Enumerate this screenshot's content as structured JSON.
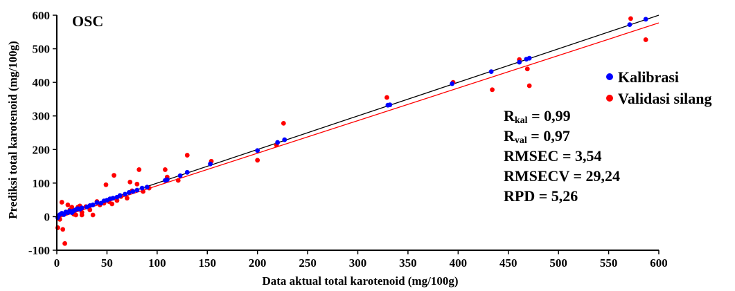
{
  "chart_data": {
    "type": "scatter",
    "panel_label": "OSC",
    "xlabel": "Data aktual total karotenoid  (mg/100g)",
    "ylabel": "Prediksi total karotenoid (mg/100g)",
    "xlim": [
      0,
      600
    ],
    "ylim": [
      -100,
      600
    ],
    "x_ticks": [
      0,
      50,
      100,
      150,
      200,
      250,
      300,
      350,
      400,
      450,
      500,
      550,
      600
    ],
    "y_ticks": [
      -100,
      0,
      100,
      200,
      300,
      400,
      500,
      600
    ],
    "grid": false,
    "legend_position": "right",
    "colors": {
      "kalibrasi": "#0000ff",
      "validasi": "#ff0000",
      "line_kal": "#000000",
      "line_val": "#ff0000"
    },
    "series": [
      {
        "name": "Kalibrasi",
        "color": "#0000ff",
        "points": [
          [
            1,
            -3
          ],
          [
            3,
            6
          ],
          [
            5,
            10
          ],
          [
            7,
            6
          ],
          [
            9,
            14
          ],
          [
            11,
            12
          ],
          [
            13,
            17
          ],
          [
            15,
            12
          ],
          [
            17,
            18
          ],
          [
            19,
            21
          ],
          [
            21,
            24
          ],
          [
            23,
            22
          ],
          [
            25,
            26
          ],
          [
            30,
            29
          ],
          [
            33,
            33
          ],
          [
            36,
            35
          ],
          [
            40,
            42
          ],
          [
            44,
            40
          ],
          [
            47,
            47
          ],
          [
            50,
            49
          ],
          [
            53,
            53
          ],
          [
            56,
            55
          ],
          [
            60,
            58
          ],
          [
            63,
            63
          ],
          [
            68,
            67
          ],
          [
            72,
            72
          ],
          [
            76,
            75
          ],
          [
            80,
            79
          ],
          [
            85,
            85
          ],
          [
            90,
            88
          ],
          [
            108,
            108
          ],
          [
            110,
            110
          ],
          [
            123,
            122
          ],
          [
            130,
            132
          ],
          [
            153,
            157
          ],
          [
            200,
            197
          ],
          [
            220,
            221
          ],
          [
            227,
            229
          ],
          [
            330,
            332
          ],
          [
            332,
            333
          ],
          [
            394,
            396
          ],
          [
            433,
            432
          ],
          [
            461,
            460
          ],
          [
            468,
            469
          ],
          [
            471,
            472
          ],
          [
            571,
            572
          ],
          [
            587,
            588
          ]
        ]
      },
      {
        "name": "Validasi silang",
        "color": "#ff0000",
        "points": [
          [
            1,
            -33
          ],
          [
            3,
            -8
          ],
          [
            5,
            43
          ],
          [
            6,
            -38
          ],
          [
            8,
            -80
          ],
          [
            9,
            10
          ],
          [
            11,
            35
          ],
          [
            13,
            20
          ],
          [
            15,
            28
          ],
          [
            17,
            7
          ],
          [
            19,
            5
          ],
          [
            21,
            28
          ],
          [
            23,
            32
          ],
          [
            25,
            13
          ],
          [
            25,
            5
          ],
          [
            29,
            30
          ],
          [
            33,
            20
          ],
          [
            36,
            5
          ],
          [
            40,
            45
          ],
          [
            43,
            35
          ],
          [
            47,
            40
          ],
          [
            49,
            95
          ],
          [
            52,
            45
          ],
          [
            55,
            38
          ],
          [
            57,
            123
          ],
          [
            60,
            48
          ],
          [
            64,
            60
          ],
          [
            70,
            55
          ],
          [
            73,
            103
          ],
          [
            75,
            77
          ],
          [
            80,
            97
          ],
          [
            82,
            140
          ],
          [
            86,
            75
          ],
          [
            92,
            85
          ],
          [
            108,
            140
          ],
          [
            110,
            118
          ],
          [
            121,
            108
          ],
          [
            130,
            183
          ],
          [
            154,
            165
          ],
          [
            200,
            168
          ],
          [
            219,
            213
          ],
          [
            226,
            278
          ],
          [
            329,
            355
          ],
          [
            395,
            400
          ],
          [
            434,
            378
          ],
          [
            461,
            468
          ],
          [
            469,
            440
          ],
          [
            471,
            390
          ],
          [
            572,
            590
          ],
          [
            587,
            527
          ]
        ]
      }
    ],
    "fit_lines": [
      {
        "name": "kalibrasi-fit",
        "color": "#000000",
        "x": [
          0,
          600
        ],
        "y": [
          0,
          600
        ]
      },
      {
        "name": "validasi-fit",
        "color": "#ff0000",
        "x": [
          0,
          600
        ],
        "y": [
          -5,
          577
        ]
      }
    ],
    "stats": [
      {
        "main": "R",
        "sub": "kal",
        "rest": " = 0,99"
      },
      {
        "main": "R",
        "sub": "val",
        "rest": " = 0,97"
      },
      {
        "main": "RMSEC = 3,54",
        "sub": "",
        "rest": ""
      },
      {
        "main": "RMSECV = 29,24",
        "sub": "",
        "rest": ""
      },
      {
        "main": "RPD = 5,26",
        "sub": "",
        "rest": ""
      }
    ]
  }
}
